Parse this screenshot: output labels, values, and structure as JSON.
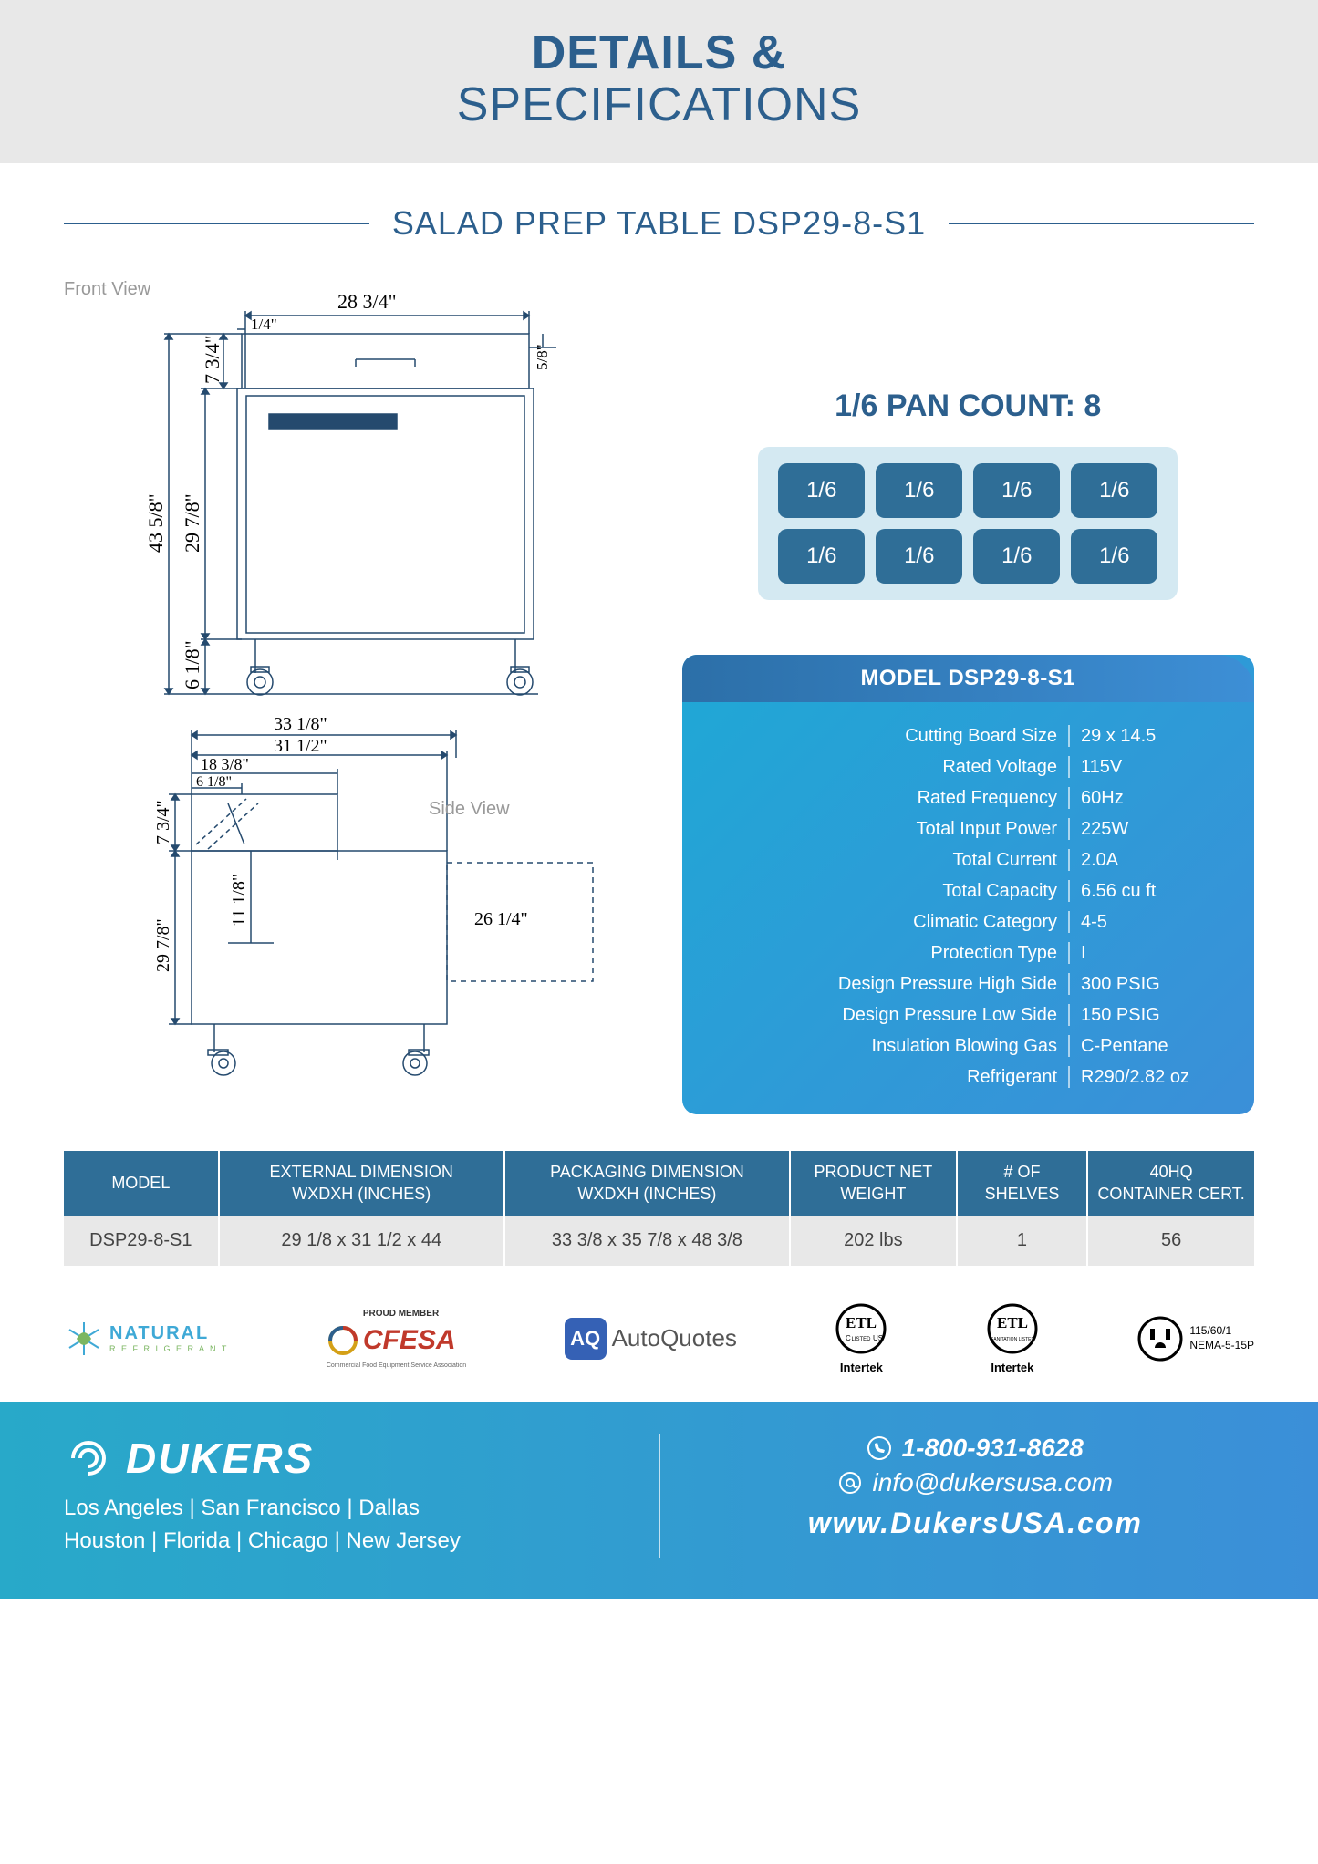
{
  "header": {
    "line1": "DETAILS &",
    "line2": "SPECIFICATIONS"
  },
  "subtitle": "SALAD PREP TABLE DSP29-8-S1",
  "diagrams": {
    "front_label": "Front View",
    "side_label": "Side View",
    "front": {
      "top_width": "28  3/4\"",
      "notch": "1/4\"",
      "right_edge": "5/8\"",
      "upper_height": "7  3/4\"",
      "mid_height": "29  7/8\"",
      "full_height": "43  5/8\"",
      "leg_height": "6  1/8\""
    },
    "side": {
      "top_width": "33  1/8\"",
      "inner_width": "31  1/2\"",
      "shelf": "18  3/8\"",
      "shelf2": "6  1/8\"",
      "upper_h": "7  3/4\"",
      "body_h": "29  7/8\"",
      "inner_h": "11  1/8\"",
      "board_w": "26  1/4\""
    }
  },
  "pan_count": {
    "title": "1/6 PAN COUNT: 8",
    "label": "1/6",
    "rows": 2,
    "cols": 4
  },
  "spec_card": {
    "title": "MODEL DSP29-8-S1",
    "rows": [
      {
        "k": "Cutting Board Size",
        "v": "29 x 14.5"
      },
      {
        "k": "Rated  Voltage",
        "v": "115V"
      },
      {
        "k": "Rated  Frequency",
        "v": "60Hz"
      },
      {
        "k": "Total Input Power",
        "v": "225W"
      },
      {
        "k": "Total Current",
        "v": "2.0A"
      },
      {
        "k": "Total Capacity",
        "v": "6.56 cu ft"
      },
      {
        "k": "Climatic Category",
        "v": "4-5"
      },
      {
        "k": "Protection Type",
        "v": "I"
      },
      {
        "k": "Design Pressure High Side",
        "v": "300 PSIG"
      },
      {
        "k": "Design Pressure Low Side",
        "v": "150 PSIG"
      },
      {
        "k": "Insulation Blowing Gas",
        "v": "C-Pentane"
      },
      {
        "k": "Refrigerant",
        "v": "R290/2.82 oz"
      }
    ]
  },
  "dim_table": {
    "headers": [
      "MODEL",
      "EXTERNAL DIMENSION\nWXDXH (INCHES)",
      "PACKAGING DIMENSION\nWXDXH (INCHES)",
      "PRODUCT NET\nWEIGHT",
      "# OF\nSHELVES",
      "40HQ\nCONTAINER CERT."
    ],
    "row": [
      "DSP29-8-S1",
      "29 1/8 x 31 1/2 x 44",
      "33 3/8 x 35 7/8 x 48 3/8",
      "202 lbs",
      "1",
      "56"
    ]
  },
  "certs": {
    "natural": {
      "l1": "NATURAL",
      "l2": "R E F R I G E R A N T"
    },
    "cfesa": {
      "top": "PROUD MEMBER",
      "main": "CFESA",
      "sub": "Commercial Food Equipment Service Association"
    },
    "autoquotes": "AutoQuotes",
    "etl1": "Intertek",
    "etl2": "Intertek",
    "plug": {
      "l1": "115/60/1",
      "l2": "NEMA-5-15P"
    }
  },
  "footer": {
    "brand": "DUKERS",
    "locations1": "Los Angeles | San Francisco | Dallas",
    "locations2": "Houston | Florida | Chicago | New Jersey",
    "phone": "1-800-931-8628",
    "email": "info@dukersusa.com",
    "web": "www.DukersUSA.com"
  }
}
